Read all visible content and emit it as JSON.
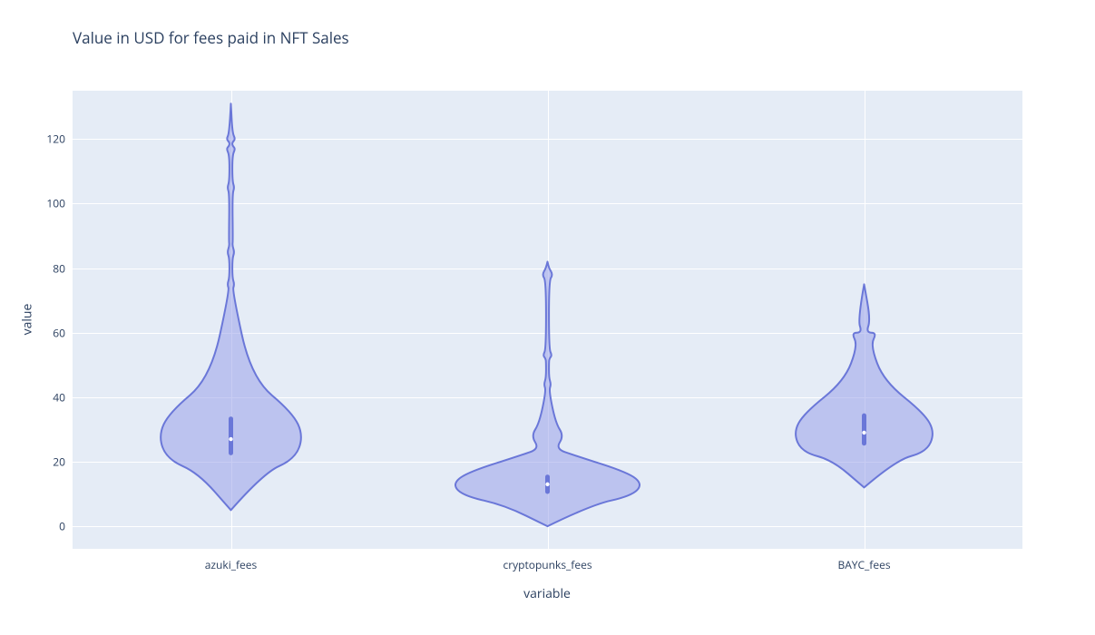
{
  "chart": {
    "type": "violin",
    "title": "Value in USD for fees paid in NFT Sales",
    "title_fontsize": 17,
    "title_color": "#2a3f5f",
    "background_color": "#ffffff",
    "plot_background_color": "#e5ecf6",
    "grid_color": "#ffffff",
    "tick_font_color": "#2a3f5f",
    "tick_fontsize": 12,
    "axis_title_fontsize": 14,
    "violin_fill_color": "#9ba2e9",
    "violin_fill_opacity": 0.55,
    "violin_stroke_color": "#6a77d8",
    "violin_stroke_width": 2,
    "box_color": "#6a77d8",
    "xaxis": {
      "title": "variable",
      "categories": [
        "azuki_fees",
        "cryptopunks_fees",
        "BAYC_fees"
      ]
    },
    "yaxis": {
      "title": "value",
      "ylim": [
        -7,
        135
      ],
      "ticks": [
        0,
        20,
        40,
        60,
        80,
        100,
        120
      ]
    },
    "series": [
      {
        "name": "azuki_fees",
        "min": 5,
        "q1": 22,
        "median": 27,
        "q3": 34,
        "max": 131,
        "body_peak_y": 28,
        "body_half_width": 80,
        "tail_y": 131,
        "extra_bulges": [
          {
            "y": 75,
            "w": 4
          },
          {
            "y": 85,
            "w": 4
          },
          {
            "y": 105,
            "w": 4
          },
          {
            "y": 117,
            "w": 5
          },
          {
            "y": 120,
            "w": 5
          }
        ]
      },
      {
        "name": "cryptopunks_fees",
        "min": 0,
        "q1": 10,
        "median": 13,
        "q3": 16,
        "max": 82,
        "body_peak_y": 13,
        "body_half_width": 105,
        "tail_y": 82,
        "secondary_bulge": {
          "y": 28,
          "w": 18
        },
        "extra_bulges": [
          {
            "y": 44,
            "w": 4
          },
          {
            "y": 53,
            "w": 5
          },
          {
            "y": 78,
            "w": 6
          }
        ]
      },
      {
        "name": "BAYC_fees",
        "min": 12,
        "q1": 25,
        "median": 29,
        "q3": 35,
        "max": 75,
        "body_peak_y": 29,
        "body_half_width": 78,
        "tail_y": 75,
        "secondary_bulge": {
          "y": 60,
          "w": 14
        },
        "extra_bulges": []
      }
    ]
  }
}
